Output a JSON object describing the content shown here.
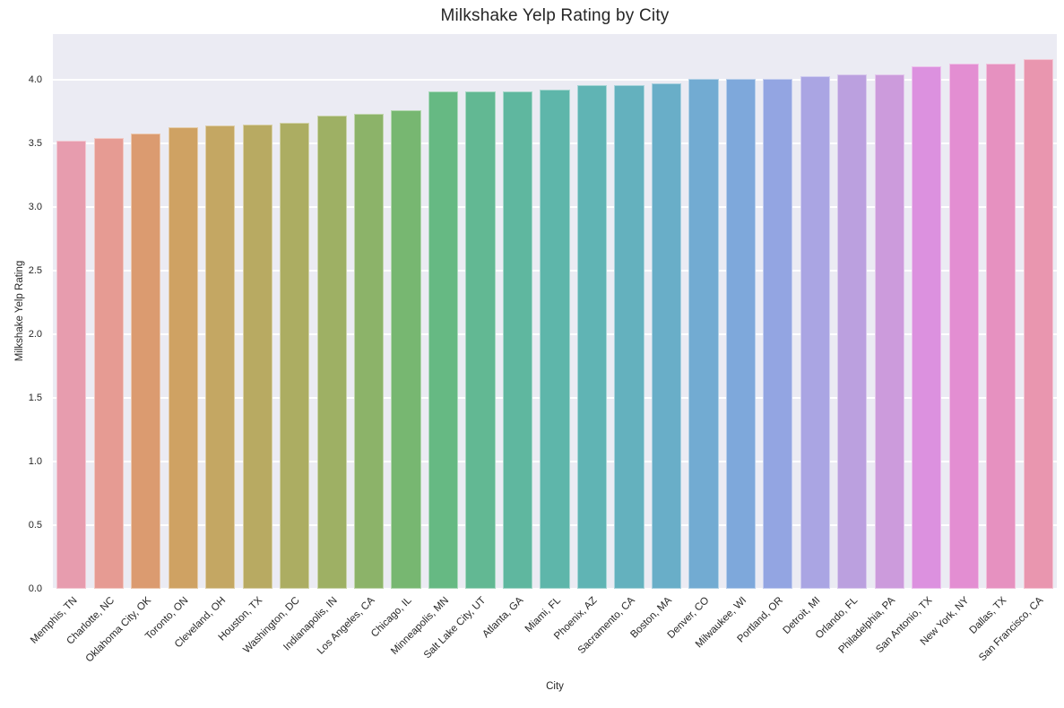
{
  "chart_data": {
    "type": "bar",
    "title": "Milkshake Yelp Rating by City",
    "xlabel": "City",
    "ylabel": "Milkshake Yelp Rating",
    "ylim": [
      0,
      4.36
    ],
    "yticks": [
      0.0,
      0.5,
      1.0,
      1.5,
      2.0,
      2.5,
      3.0,
      3.5,
      4.0
    ],
    "grid": true,
    "legend": false,
    "plot_background": "#ebebf3",
    "grid_color": "#ffffff",
    "text_color": "#262626",
    "categories": [
      "Memphis, TN",
      "Charlotte, NC",
      "Oklahoma City, OK",
      "Toronto, ON",
      "Cleveland, OH",
      "Houston, TX",
      "Washington, DC",
      "Indianapolis, IN",
      "Los Angeles, CA",
      "Chicago, IL",
      "Minneapolis, MN",
      "Salt Lake City, UT",
      "Atlanta, GA",
      "Miami, FL",
      "Phoenix, AZ",
      "Sacramento, CA",
      "Boston, MA",
      "Denver, CO",
      "Milwaukee, WI",
      "Portland, OR",
      "Detroit, MI",
      "Orlando, FL",
      "Philadelphia, PA",
      "San Antonio, TX",
      "New York, NY",
      "Dallas, TX",
      "San Francisco, CA"
    ],
    "values": [
      3.52,
      3.54,
      3.58,
      3.63,
      3.64,
      3.65,
      3.66,
      3.72,
      3.73,
      3.76,
      3.91,
      3.91,
      3.91,
      3.92,
      3.96,
      3.96,
      3.97,
      4.01,
      4.01,
      4.01,
      4.03,
      4.04,
      4.04,
      4.11,
      4.13,
      4.13,
      4.16
    ],
    "bar_colors": [
      "#e79cae",
      "#e69b93",
      "#db9b70",
      "#cfa263",
      "#c4a763",
      "#b8aa62",
      "#acad62",
      "#9eb064",
      "#8cb369",
      "#77b771",
      "#66b983",
      "#62b893",
      "#5fb79f",
      "#5eb6aa",
      "#60b4b4",
      "#64b1be",
      "#69aec8",
      "#72abd2",
      "#7ea8db",
      "#93a5e2",
      "#aaa5e3",
      "#bba0df",
      "#cc9bdc",
      "#dc91df",
      "#e38ed2",
      "#e691c0",
      "#e996af"
    ]
  }
}
